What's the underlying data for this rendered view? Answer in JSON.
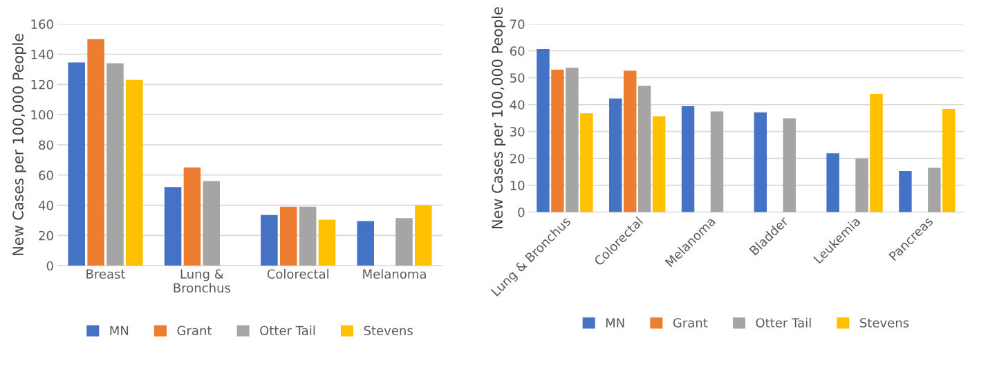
{
  "chart_data": [
    {
      "type": "bar",
      "ylabel": "New Cases per 100,000 People",
      "categories": [
        "Breast",
        "Lung &\nBronchus",
        "Colorectal",
        "Melanoma"
      ],
      "series": [
        {
          "name": "MN",
          "color": "#4472c4",
          "values": [
            134.5,
            52,
            33.5,
            29.5
          ]
        },
        {
          "name": "Grant",
          "color": "#ed7d31",
          "values": [
            150,
            65,
            39,
            null
          ]
        },
        {
          "name": "Otter Tail",
          "color": "#a5a5a5",
          "values": [
            134,
            56,
            39,
            31.5
          ]
        },
        {
          "name": "Stevens",
          "color": "#ffc000",
          "values": [
            123,
            null,
            30.5,
            40
          ]
        }
      ],
      "ylim": [
        0,
        160
      ],
      "yticks": [
        0,
        20,
        40,
        60,
        80,
        100,
        120,
        140,
        160
      ],
      "grid": "y",
      "legend": "bottom"
    },
    {
      "type": "bar",
      "ylabel": "New Cases per 100,000 People",
      "categories": [
        "Lung & Bronchus",
        "Colorectal",
        "Melanoma",
        "Bladder",
        "Leukemia",
        "Pancreas"
      ],
      "series": [
        {
          "name": "MN",
          "color": "#4472c4",
          "values": [
            60.7,
            42.3,
            39.4,
            37.1,
            21.9,
            15.3
          ]
        },
        {
          "name": "Grant",
          "color": "#ed7d31",
          "values": [
            53,
            52.6,
            null,
            null,
            null,
            null
          ]
        },
        {
          "name": "Otter Tail",
          "color": "#a5a5a5",
          "values": [
            53.7,
            47,
            37.5,
            34.9,
            20,
            16.5
          ]
        },
        {
          "name": "Stevens",
          "color": "#ffc000",
          "values": [
            36.8,
            35.7,
            null,
            null,
            44,
            38.4
          ]
        }
      ],
      "ylim": [
        0,
        70
      ],
      "yticks": [
        0,
        10,
        20,
        30,
        40,
        50,
        60,
        70
      ],
      "grid": "y",
      "legend": "bottom"
    }
  ]
}
